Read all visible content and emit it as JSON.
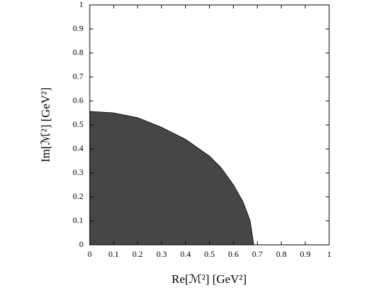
{
  "chart_data": {
    "type": "area",
    "xlabel": "Re[ℳ²] [GeV²]",
    "ylabel": "Im[ℳ²] [GeV²]",
    "x": [
      0,
      0.1,
      0.2,
      0.3,
      0.4,
      0.5,
      0.55,
      0.6,
      0.64,
      0.67,
      0.685
    ],
    "y": [
      0.556,
      0.55,
      0.53,
      0.49,
      0.44,
      0.37,
      0.32,
      0.25,
      0.18,
      0.1,
      0
    ],
    "color": "#464646",
    "xlim": [
      0,
      1
    ],
    "ylim": [
      0,
      1
    ],
    "xticks": [
      0,
      0.1,
      0.2,
      0.3,
      0.4,
      0.5,
      0.6,
      0.7,
      0.8,
      0.9,
      1
    ],
    "yticks": [
      0,
      0.1,
      0.2,
      0.3,
      0.4,
      0.5,
      0.6,
      0.7,
      0.8,
      0.9,
      1
    ]
  }
}
